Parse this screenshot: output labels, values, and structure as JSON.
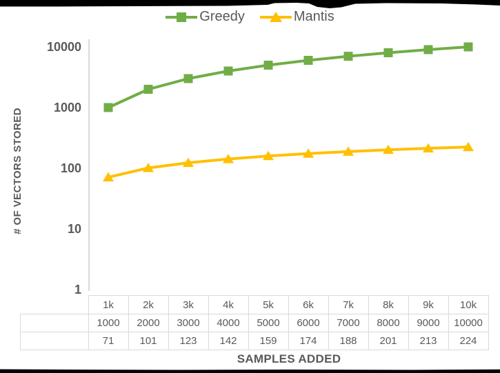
{
  "colors": {
    "greedy": "#70AD47",
    "mantis": "#FFC000",
    "text": "#595959",
    "grid_border": "#D9D9D9",
    "scan_border": "#000000",
    "background": "#ffffff"
  },
  "legend": {
    "items": [
      {
        "label": "Greedy",
        "marker": "square",
        "color": "#70AD47"
      },
      {
        "label": "Mantis",
        "marker": "triangle",
        "color": "#FFC000"
      }
    ]
  },
  "chart_data": {
    "type": "line",
    "title": "",
    "xlabel": "SAMPLES ADDED",
    "ylabel": "# OF VECTORS STORED",
    "categories": [
      "1k",
      "2k",
      "3k",
      "4k",
      "5k",
      "6k",
      "7k",
      "8k",
      "9k",
      "10k"
    ],
    "series": [
      {
        "name": "Greedy",
        "color": "#70AD47",
        "marker": "square",
        "values": [
          1000,
          2000,
          3000,
          4000,
          5000,
          6000,
          7000,
          8000,
          9000,
          10000
        ]
      },
      {
        "name": "Mantis",
        "color": "#FFC000",
        "marker": "triangle",
        "values": [
          71,
          101,
          123,
          142,
          159,
          174,
          188,
          201,
          213,
          224
        ]
      }
    ],
    "y_scale": "log10",
    "ylim": [
      1,
      10000
    ],
    "y_ticks": [
      10000,
      1000,
      100,
      10,
      1
    ],
    "grid": false,
    "legend_position": "top-center",
    "data_table_shown": true
  }
}
